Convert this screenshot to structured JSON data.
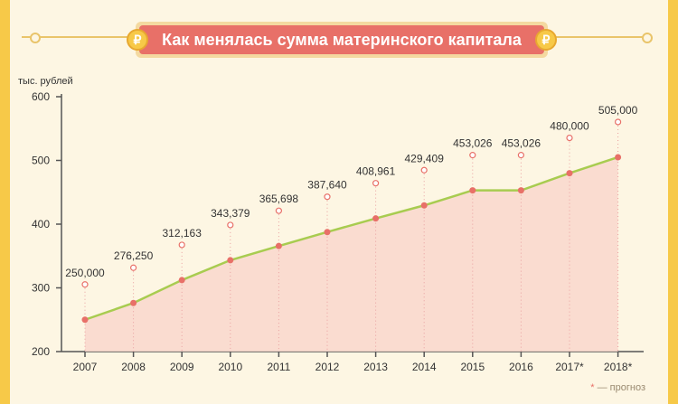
{
  "title": "Как менялась сумма материнского капитала",
  "currency_icon": "ruble-coin-icon",
  "currency_symbol": "₽",
  "footnote": {
    "star": "*",
    "text": " — прогноз"
  },
  "colors": {
    "line": "#a8cc50",
    "area": "#f9d7cc",
    "point": "#e87068",
    "label_point": "#e87068",
    "title_bg": "#e87068",
    "frame": "#f7c948"
  },
  "chart_data": {
    "type": "area",
    "title": "Как менялась сумма материнского капитала",
    "ylabel": "тыс. рублей",
    "xlabel": "",
    "categories": [
      "2007",
      "2008",
      "2009",
      "2010",
      "2011",
      "2012",
      "2013",
      "2014",
      "2015",
      "2016",
      "2017*",
      "2018*"
    ],
    "values": [
      250000,
      276250,
      312163,
      343379,
      365698,
      387640,
      408961,
      429409,
      453026,
      453026,
      480000,
      505000
    ],
    "value_labels": [
      "250,000",
      "276,250",
      "312,163",
      "343,379",
      "365,698",
      "387,640",
      "408,961",
      "429,409",
      "453,026",
      "453,026",
      "480,000",
      "505,000"
    ],
    "ylim": [
      200,
      600
    ],
    "yticks": [
      "200",
      "300",
      "400",
      "500",
      "600"
    ],
    "grid": false
  }
}
